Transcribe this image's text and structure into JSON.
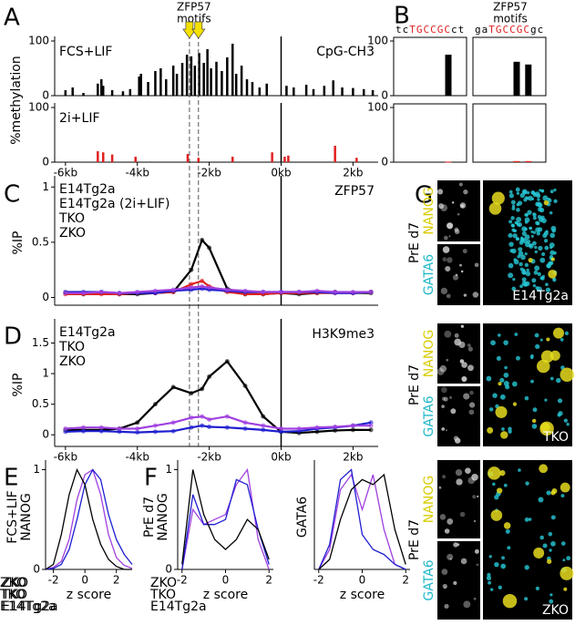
{
  "figure": {
    "panels": [
      "A",
      "B",
      "C",
      "D",
      "E",
      "F",
      "G"
    ],
    "images": {
      "condition": "PrE d7",
      "marker1": "NANOG",
      "marker2": "GATA6",
      "samples": [
        "E14Tg2a",
        "TKO",
        "ZKO"
      ]
    }
  },
  "chart_data": [
    {
      "type": "bar",
      "label_left": "FCS+LIF",
      "label_right": "CpG-CH3",
      "ylabel": "%methylation",
      "annotation": [
        "ZFP57",
        "motifs"
      ],
      "motif_x": [
        -2.55,
        -2.3
      ],
      "color": "#000000",
      "x": [
        -6.0,
        -5.8,
        -5.5,
        -5.1,
        -5.0,
        -4.95,
        -4.7,
        -4.4,
        -4.2,
        -3.95,
        -3.9,
        -3.7,
        -3.5,
        -3.35,
        -3.2,
        -3.0,
        -2.9,
        -2.75,
        -2.62,
        -2.5,
        -2.4,
        -2.28,
        -2.15,
        -2.05,
        -1.95,
        -1.8,
        -1.65,
        -1.5,
        -1.35,
        -1.25,
        -1.1,
        -0.95,
        -0.8,
        -0.6,
        -0.4,
        0.15,
        0.35,
        0.7,
        0.9,
        1.2,
        1.45,
        1.7,
        2.0,
        2.3,
        2.55
      ],
      "values": [
        10,
        15,
        5,
        22,
        30,
        18,
        10,
        8,
        12,
        35,
        40,
        25,
        45,
        50,
        30,
        55,
        40,
        60,
        75,
        72,
        55,
        78,
        60,
        85,
        50,
        62,
        45,
        70,
        95,
        40,
        55,
        30,
        25,
        15,
        22,
        18,
        15,
        20,
        12,
        18,
        28,
        15,
        14,
        12,
        10
      ],
      "xlim": [
        -6.3,
        2.7
      ],
      "ylim": [
        0,
        100
      ],
      "yticks": [
        0,
        100
      ],
      "vline": 0
    },
    {
      "type": "bar",
      "label_left": "2i+LIF",
      "color": "#e02020",
      "x": [
        -5.1,
        -4.95,
        -4.7,
        -4.05,
        -2.6,
        -2.3,
        -1.35,
        -0.25,
        0.1,
        0.2,
        1.5,
        2.1
      ],
      "values": [
        20,
        18,
        14,
        10,
        15,
        8,
        10,
        18,
        10,
        12,
        30,
        8
      ],
      "xlim": [
        -6.3,
        2.7
      ],
      "ylim": [
        0,
        100
      ],
      "yticks": [
        0,
        100
      ],
      "vline": 0,
      "xticks": [
        {
          "value": -6,
          "label": "-6kb"
        },
        {
          "value": -4,
          "label": "-4kb"
        },
        {
          "value": -2,
          "label": "-2kb"
        },
        {
          "value": 0,
          "label": "0kb"
        },
        {
          "value": 2,
          "label": "2kb"
        }
      ]
    },
    {
      "type": "line",
      "label_right": "ZFP57",
      "ylabel": "%IP",
      "markers": true,
      "vline": 0,
      "x": [
        -6,
        -5.5,
        -5,
        -4.5,
        -4,
        -3.5,
        -3,
        -2.5,
        -2.2,
        -2,
        -1.5,
        -1,
        -0.5,
        0,
        0.5,
        1,
        1.5,
        2,
        2.5
      ],
      "series": [
        {
          "name": "E14Tg2a",
          "color": "#000000",
          "values": [
            0.04,
            0.03,
            0.04,
            0.03,
            0.03,
            0.04,
            0.05,
            0.25,
            0.52,
            0.45,
            0.08,
            0.03,
            0.03,
            0.04,
            0.03,
            0.04,
            0.05,
            0.04,
            0.04
          ]
        },
        {
          "name": "E14Tg2a (2i+LIF)",
          "color": "#e02020",
          "values": [
            0.03,
            0.03,
            0.03,
            0.03,
            0.04,
            0.04,
            0.05,
            0.12,
            0.15,
            0.1,
            0.05,
            0.03,
            0.03,
            0.04,
            0.04,
            0.04,
            0.04,
            0.04,
            0.05
          ]
        },
        {
          "name": "TKO",
          "color": "#1f1fd0",
          "values": [
            0.05,
            0.05,
            0.05,
            0.04,
            0.04,
            0.04,
            0.06,
            0.07,
            0.08,
            0.07,
            0.06,
            0.05,
            0.05,
            0.05,
            0.05,
            0.05,
            0.04,
            0.04,
            0.05
          ]
        },
        {
          "name": "ZKO",
          "color": "#a040e0",
          "values": [
            0.04,
            0.04,
            0.05,
            0.04,
            0.05,
            0.06,
            0.07,
            0.09,
            0.1,
            0.09,
            0.07,
            0.06,
            0.05,
            0.05,
            0.05,
            0.06,
            0.05,
            0.05,
            0.05
          ]
        }
      ],
      "xlim": [
        -6.3,
        2.7
      ],
      "ylim": [
        -0.07,
        1.06
      ],
      "yticks": [
        0,
        0.5,
        1
      ]
    },
    {
      "type": "line",
      "label_right": "H3K9me3",
      "ylabel": "%IP",
      "markers": true,
      "vline": 0,
      "x": [
        -6,
        -5.5,
        -5,
        -4.5,
        -4,
        -3.5,
        -3,
        -2.5,
        -2.2,
        -2,
        -1.5,
        -1,
        -0.5,
        0,
        0.5,
        1,
        1.5,
        2,
        2.5
      ],
      "series": [
        {
          "name": "E14Tg2a",
          "color": "#000000",
          "values": [
            0.08,
            0.08,
            0.08,
            0.1,
            0.2,
            0.5,
            0.78,
            0.68,
            0.75,
            0.95,
            1.2,
            0.8,
            0.3,
            0.05,
            0.03,
            0.05,
            0.07,
            0.08,
            0.08
          ]
        },
        {
          "name": "TKO",
          "color": "#1f1fd0",
          "values": [
            0.05,
            0.06,
            0.06,
            0.05,
            0.04,
            0.05,
            0.06,
            0.12,
            0.15,
            0.13,
            0.12,
            0.1,
            0.08,
            0.05,
            0.06,
            0.1,
            0.12,
            0.15,
            0.2
          ]
        },
        {
          "name": "ZKO",
          "color": "#a040e0",
          "values": [
            0.1,
            0.12,
            0.12,
            0.1,
            0.1,
            0.15,
            0.2,
            0.28,
            0.3,
            0.25,
            0.3,
            0.2,
            0.15,
            0.1,
            0.1,
            0.12,
            0.13,
            0.15,
            0.15
          ]
        }
      ],
      "xlim": [
        -6.3,
        2.7
      ],
      "ylim": [
        -0.19,
        1.82
      ],
      "yticks": [
        0,
        0.5,
        1,
        1.5
      ],
      "xticks": [
        {
          "value": -6,
          "label": "-6kb"
        },
        {
          "value": -4,
          "label": "-4kb"
        },
        {
          "value": -2,
          "label": "-2kb"
        },
        {
          "value": 0,
          "label": "0kb"
        },
        {
          "value": 2,
          "label": "2kb"
        }
      ]
    },
    {
      "type": "bar",
      "annotation": [
        "ZFP57",
        "motifs"
      ],
      "sequence": [
        {
          "text": "tc",
          "color": "#000000"
        },
        {
          "text": "TGCCGC",
          "color": "#e02020"
        },
        {
          "text": "ct",
          "color": "#000000"
        }
      ],
      "color": "#000000",
      "frame": true,
      "x": [
        7.5
      ],
      "values": [
        75
      ],
      "xlim": [
        0,
        10
      ],
      "ylim": [
        0,
        100
      ],
      "yticks": [
        0,
        100
      ]
    },
    {
      "type": "bar",
      "sequence": [
        {
          "text": "ga",
          "color": "#000000"
        },
        {
          "text": "TGCCGC",
          "color": "#e02020"
        },
        {
          "text": "gc",
          "color": "#000000"
        }
      ],
      "color": "#000000",
      "frame": true,
      "x": [
        6,
        7.6
      ],
      "values": [
        62,
        57
      ],
      "xlim": [
        0,
        10
      ],
      "ylim": [
        0,
        100
      ]
    },
    {
      "type": "bar",
      "color": "#e02020",
      "frame": true,
      "x": [
        7.5
      ],
      "values": [
        1
      ],
      "xlim": [
        0,
        10
      ],
      "ylim": [
        0,
        100
      ],
      "yticks": [
        0,
        100
      ]
    },
    {
      "type": "bar",
      "color": "#e02020",
      "frame": true,
      "x": [
        6,
        7.6
      ],
      "values": [
        2,
        2
      ],
      "xlim": [
        0,
        10
      ],
      "ylim": [
        0,
        100
      ]
    },
    {
      "type": "density",
      "ylabel": [
        "FCS+LIF",
        "NANOG"
      ],
      "xlabel": "z score",
      "x": [
        -2.5,
        -2,
        -1.5,
        -1,
        -0.5,
        0,
        0.5,
        1,
        1.5,
        2,
        2.5,
        3
      ],
      "series": [
        {
          "name": "ZKO",
          "color": "#a040e0",
          "values": [
            0,
            0.02,
            0.08,
            0.3,
            0.7,
            0.95,
            1,
            0.75,
            0.35,
            0.12,
            0.04,
            0.01
          ]
        },
        {
          "name": "TKO",
          "color": "#1f1fd0",
          "values": [
            0,
            0.01,
            0.05,
            0.2,
            0.5,
            0.85,
            1,
            0.9,
            0.55,
            0.3,
            0.15,
            0.05
          ]
        },
        {
          "name": "E14Tg2a",
          "color": "#000000",
          "values": [
            0,
            0.05,
            0.35,
            0.75,
            1,
            0.85,
            0.5,
            0.25,
            0.1,
            0.03,
            0,
            0
          ]
        }
      ],
      "xlim": [
        -2.5,
        3
      ],
      "ylim": [
        0,
        1.05
      ],
      "xticks": [
        -2,
        0,
        2
      ],
      "yticks": [
        0,
        1
      ]
    },
    {
      "type": "density",
      "ylabel": [
        "PrE d7",
        "NANOG"
      ],
      "xlabel": "z score",
      "x": [
        -2,
        -1.5,
        -1,
        -0.5,
        0,
        0.5,
        1,
        1.5,
        2
      ],
      "series": [
        {
          "name": "ZKO",
          "color": "#a040e0",
          "values": [
            0,
            0.6,
            0.45,
            0.5,
            0.55,
            0.85,
            1,
            0.3,
            0
          ]
        },
        {
          "name": "TKO",
          "color": "#1f1fd0",
          "values": [
            0,
            0.75,
            0.45,
            0.45,
            0.5,
            0.9,
            0.85,
            0.4,
            0.05
          ]
        },
        {
          "name": "E14Tg2a",
          "color": "#000000",
          "values": [
            0.05,
            1,
            0.55,
            0.3,
            0.2,
            0.3,
            0.5,
            0.4,
            0.1
          ]
        }
      ],
      "xlim": [
        -2.2,
        2.2
      ],
      "ylim": [
        0,
        1.05
      ],
      "xticks": [
        -2,
        0,
        2
      ],
      "yticks": [
        0,
        1
      ]
    },
    {
      "type": "density",
      "ylabel": [
        "GATA6"
      ],
      "xlabel": "z score",
      "x": [
        -2,
        -1.5,
        -1,
        -0.5,
        0,
        0.5,
        1,
        1.5,
        2
      ],
      "series": [
        {
          "name": "ZKO",
          "color": "#a040e0",
          "values": [
            0,
            0.2,
            0.8,
            0.95,
            0.6,
            0.95,
            0.4,
            0.05,
            0
          ]
        },
        {
          "name": "TKO",
          "color": "#1f1fd0",
          "values": [
            0,
            0.25,
            0.9,
            1,
            0.35,
            0.2,
            0.15,
            0.05,
            0
          ]
        },
        {
          "name": "E14Tg2a",
          "color": "#000000",
          "values": [
            0,
            0.1,
            0.5,
            0.8,
            0.9,
            0.85,
            0.95,
            0.4,
            0.05
          ]
        }
      ],
      "xlim": [
        -2.2,
        2.2
      ],
      "ylim": [
        0,
        1.05
      ],
      "xticks": [
        -2,
        0,
        2
      ]
    }
  ]
}
